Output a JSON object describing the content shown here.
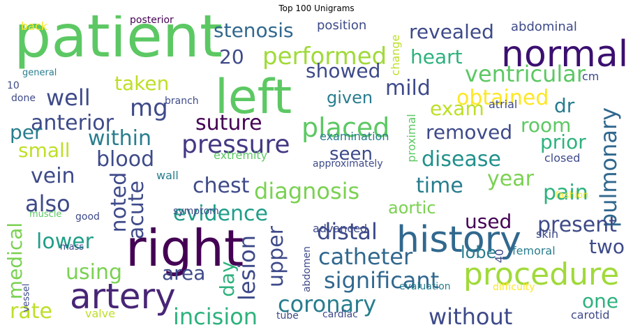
{
  "chart_data": {
    "type": "wordcloud",
    "title": "Top 100 Unigrams",
    "words": [
      {
        "text": "patient",
        "color": "#5cc863"
      },
      {
        "text": "right",
        "color": "#440154"
      },
      {
        "text": "left",
        "color": "#5cc863"
      },
      {
        "text": "history",
        "color": "#31688e"
      },
      {
        "text": "normal",
        "color": "#3b0f70"
      },
      {
        "text": "artery",
        "color": "#482576"
      },
      {
        "text": "procedure",
        "color": "#a0da39"
      },
      {
        "text": "pressure",
        "color": "#443983"
      },
      {
        "text": "performed",
        "color": "#a0da39"
      },
      {
        "text": "placed",
        "color": "#5cc863"
      },
      {
        "text": "within",
        "color": "#287d8e"
      },
      {
        "text": "revealed",
        "color": "#3e4a89"
      },
      {
        "text": "stenosis",
        "color": "#31688e"
      },
      {
        "text": "heart",
        "color": "#2db27d"
      },
      {
        "text": "ventricular",
        "color": "#5cc863"
      },
      {
        "text": "obtained",
        "color": "#fde725"
      },
      {
        "text": "well",
        "color": "#3e4a89"
      },
      {
        "text": "blood",
        "color": "#3e4a89"
      },
      {
        "text": "anterior",
        "color": "#3e4a89"
      },
      {
        "text": "mg",
        "color": "#3e4a89"
      },
      {
        "text": "pulmonary",
        "color": "#31688e"
      },
      {
        "text": "catheter",
        "color": "#31688e"
      },
      {
        "text": "coronary",
        "color": "#287d8e"
      },
      {
        "text": "significant",
        "color": "#31688e"
      },
      {
        "text": "evidence",
        "color": "#1f9e89"
      },
      {
        "text": "diagnosis",
        "color": "#7ad151"
      },
      {
        "text": "disease",
        "color": "#21918c"
      },
      {
        "text": "lesion",
        "color": "#3e4a89"
      },
      {
        "text": "incision",
        "color": "#2db27d"
      },
      {
        "text": "without",
        "color": "#3e4a89"
      },
      {
        "text": "removed",
        "color": "#3e4a89"
      },
      {
        "text": "chest",
        "color": "#3e4a89"
      },
      {
        "text": "suture",
        "color": "#440154"
      },
      {
        "text": "showed",
        "color": "#3e4a89"
      },
      {
        "text": "taken",
        "color": "#bddf26"
      },
      {
        "text": "small",
        "color": "#bddf26"
      },
      {
        "text": "also",
        "color": "#3e4a89"
      },
      {
        "text": "using",
        "color": "#7ad151"
      },
      {
        "text": "medical",
        "color": "#7ad151"
      },
      {
        "text": "lower",
        "color": "#1f9e89"
      },
      {
        "text": "vein",
        "color": "#3e4a89"
      },
      {
        "text": "per",
        "color": "#287d8e"
      },
      {
        "text": "rate",
        "color": "#bddf26"
      },
      {
        "text": "upper",
        "color": "#3e4a89"
      },
      {
        "text": "distal",
        "color": "#3e4a89"
      },
      {
        "text": "area",
        "color": "#3e4a89"
      },
      {
        "text": "noted",
        "color": "#3e4a89"
      },
      {
        "text": "acute",
        "color": "#3e4a89"
      },
      {
        "text": "day",
        "color": "#2db27d"
      },
      {
        "text": "time",
        "color": "#287d8e"
      },
      {
        "text": "year",
        "color": "#7ad151"
      },
      {
        "text": "pain",
        "color": "#2db27d"
      },
      {
        "text": "present",
        "color": "#3e4a89"
      },
      {
        "text": "used",
        "color": "#440154"
      },
      {
        "text": "two",
        "color": "#3e4a89"
      },
      {
        "text": "one",
        "color": "#2db27d"
      },
      {
        "text": "mild",
        "color": "#3e4a89"
      },
      {
        "text": "exam",
        "color": "#bddf26"
      },
      {
        "text": "dr",
        "color": "#287d8e"
      },
      {
        "text": "room",
        "color": "#5cc863"
      },
      {
        "text": "prior",
        "color": "#2db27d"
      },
      {
        "text": "given",
        "color": "#287d8e"
      },
      {
        "text": "seen",
        "color": "#3e4a89"
      },
      {
        "text": "aortic",
        "color": "#7ad151"
      },
      {
        "text": "lobe",
        "color": "#287d8e"
      },
      {
        "text": "20",
        "color": "#3e4a89"
      },
      {
        "text": "position",
        "color": "#3e4a89"
      },
      {
        "text": "abdominal",
        "color": "#3e4a89"
      },
      {
        "text": "change",
        "color": "#bddf26"
      },
      {
        "text": "proximal",
        "color": "#5cc863"
      },
      {
        "text": "examination",
        "color": "#287d8e"
      },
      {
        "text": "extremity",
        "color": "#5cc863"
      },
      {
        "text": "approximately",
        "color": "#3e4a89"
      },
      {
        "text": "closed",
        "color": "#3e4a89"
      },
      {
        "text": "atrial",
        "color": "#3e4a89"
      },
      {
        "text": "cm",
        "color": "#3e4a89"
      },
      {
        "text": "fashion",
        "color": "#fde725"
      },
      {
        "text": "back",
        "color": "#fde725"
      },
      {
        "text": "posterior",
        "color": "#440154"
      },
      {
        "text": "general",
        "color": "#287d8e"
      },
      {
        "text": "10",
        "color": "#3e4a89"
      },
      {
        "text": "done",
        "color": "#3e4a89"
      },
      {
        "text": "branch",
        "color": "#3e4a89"
      },
      {
        "text": "wall",
        "color": "#287d8e"
      },
      {
        "text": "symptom",
        "color": "#3e4a89"
      },
      {
        "text": "good",
        "color": "#3e4a89"
      },
      {
        "text": "muscle",
        "color": "#5cc863"
      },
      {
        "text": "mass",
        "color": "#3e4a89"
      },
      {
        "text": "vessel",
        "color": "#3e4a89"
      },
      {
        "text": "valve",
        "color": "#bddf26"
      },
      {
        "text": "advanced",
        "color": "#3e4a89"
      },
      {
        "text": "abdomen",
        "color": "#3e4a89"
      },
      {
        "text": "tube",
        "color": "#3e4a89"
      },
      {
        "text": "cardiac",
        "color": "#3e4a89"
      },
      {
        "text": "40",
        "color": "#3e4a89"
      },
      {
        "text": "evaluation",
        "color": "#287d8e"
      },
      {
        "text": "difficulty",
        "color": "#fde725"
      },
      {
        "text": "skin",
        "color": "#3e4a89"
      },
      {
        "text": "femoral",
        "color": "#287d8e"
      },
      {
        "text": "carotid",
        "color": "#3e4a89"
      }
    ]
  }
}
